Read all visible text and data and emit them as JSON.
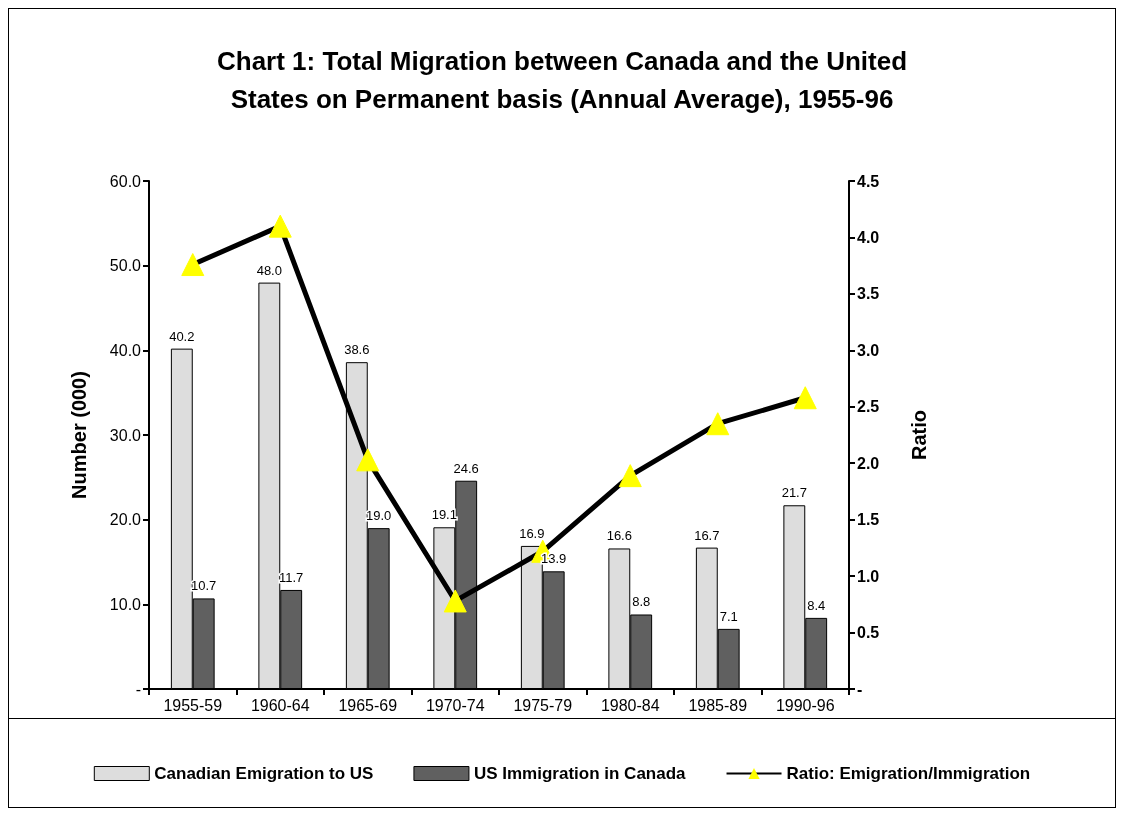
{
  "chart_data": {
    "type": "bar",
    "title": "Chart 1: Total Migration between Canada and the United\nStates on Permanent basis (Annual Average), 1955-96",
    "ylabel": "Number (000)",
    "y2label": "Ratio",
    "categories": [
      "1955-59",
      "1960-64",
      "1965-69",
      "1970-74",
      "1975-79",
      "1980-84",
      "1985-89",
      "1990-96"
    ],
    "series": [
      {
        "name": "Canadian Emigration to US",
        "color": "#dddddd",
        "values": [
          40.2,
          48.0,
          38.6,
          19.1,
          16.9,
          16.6,
          16.7,
          21.7
        ],
        "value_labels": [
          "40.2",
          "48.0",
          "38.6",
          "19.1",
          "16.9",
          "16.6",
          "16.7",
          "21.7"
        ]
      },
      {
        "name": "US Immigration in Canada",
        "color": "#606060",
        "values": [
          10.7,
          11.7,
          19.0,
          24.6,
          13.9,
          8.8,
          7.1,
          8.4
        ],
        "value_labels": [
          "10.7",
          "11.7",
          "19.0",
          "24.6",
          "13.9",
          "8.8",
          "7.1",
          "8.4"
        ]
      },
      {
        "name": "Ratio: Emigration/Immigration",
        "type": "line",
        "axis": "y2",
        "color": "#000000",
        "marker": "triangle",
        "values": [
          3.76,
          4.1,
          2.03,
          0.78,
          1.22,
          1.89,
          2.35,
          2.58
        ]
      }
    ],
    "ylim": [
      0,
      60
    ],
    "yticks": [
      {
        "value": 0,
        "label": "-"
      },
      {
        "value": 10,
        "label": "10.0"
      },
      {
        "value": 20,
        "label": "20.0"
      },
      {
        "value": 30,
        "label": "30.0"
      },
      {
        "value": 40,
        "label": "40.0"
      },
      {
        "value": 50,
        "label": "50.0"
      },
      {
        "value": 60,
        "label": "60.0"
      }
    ],
    "y2lim": [
      0,
      4.5
    ],
    "y2ticks": [
      {
        "value": 0,
        "label": "-"
      },
      {
        "value": 0.5,
        "label": "0.5"
      },
      {
        "value": 1,
        "label": "1.0"
      },
      {
        "value": 1.5,
        "label": "1.5"
      },
      {
        "value": 2,
        "label": "2.0"
      },
      {
        "value": 2.5,
        "label": "2.5"
      },
      {
        "value": 3,
        "label": "3.0"
      },
      {
        "value": 3.5,
        "label": "3.5"
      },
      {
        "value": 4,
        "label": "4.0"
      },
      {
        "value": 4.5,
        "label": "4.5"
      }
    ],
    "grid": false,
    "legend": "bottom"
  }
}
